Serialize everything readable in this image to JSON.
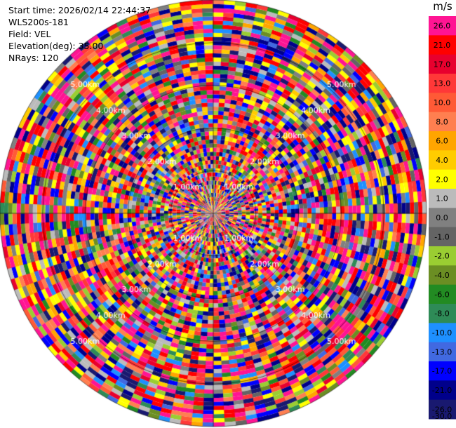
{
  "info": {
    "start_time": "Start time: 2026/02/14 22:44:37",
    "instrument": "WLS200s-181",
    "field": "Field: VEL",
    "elevation": "Elevation(deg): 35.00",
    "nrays": "NRays: 120"
  },
  "chart_data": {
    "type": "heatmap",
    "projection": "polar-ppi",
    "field": "VEL",
    "units": "m/s",
    "nrays": 120,
    "max_range_km": 5.0,
    "range_ring_labels": [
      "1.00km",
      "2.00km",
      "3.00km",
      "4.00km",
      "5.00km"
    ],
    "range_rings_km": [
      1,
      2,
      3,
      4,
      5
    ],
    "colorbar": {
      "ticks": [
        "26.0",
        "21.0",
        "17.0",
        "13.0",
        "10.0",
        "8.0",
        "6.0",
        "4.0",
        "2.0",
        "1.0",
        "0.0",
        "-1.0",
        "-2.0",
        "-4.0",
        "-6.0",
        "-8.0",
        "-10.0",
        "-13.0",
        "-17.0",
        "-21.0",
        "-26.0",
        "-30.0"
      ],
      "colors": [
        "#ff1493",
        "#ff0000",
        "#e8002e",
        "#ff3838",
        "#ff5a36",
        "#ff7f50",
        "#ffa500",
        "#ffcc00",
        "#ffff00",
        "#bbbbbb",
        "#808080",
        "#646464",
        "#9acd32",
        "#6b8e23",
        "#228b22",
        "#2e8b57",
        "#1e90ff",
        "#4169e1",
        "#0000ff",
        "#00008b",
        "#191970"
      ]
    }
  }
}
